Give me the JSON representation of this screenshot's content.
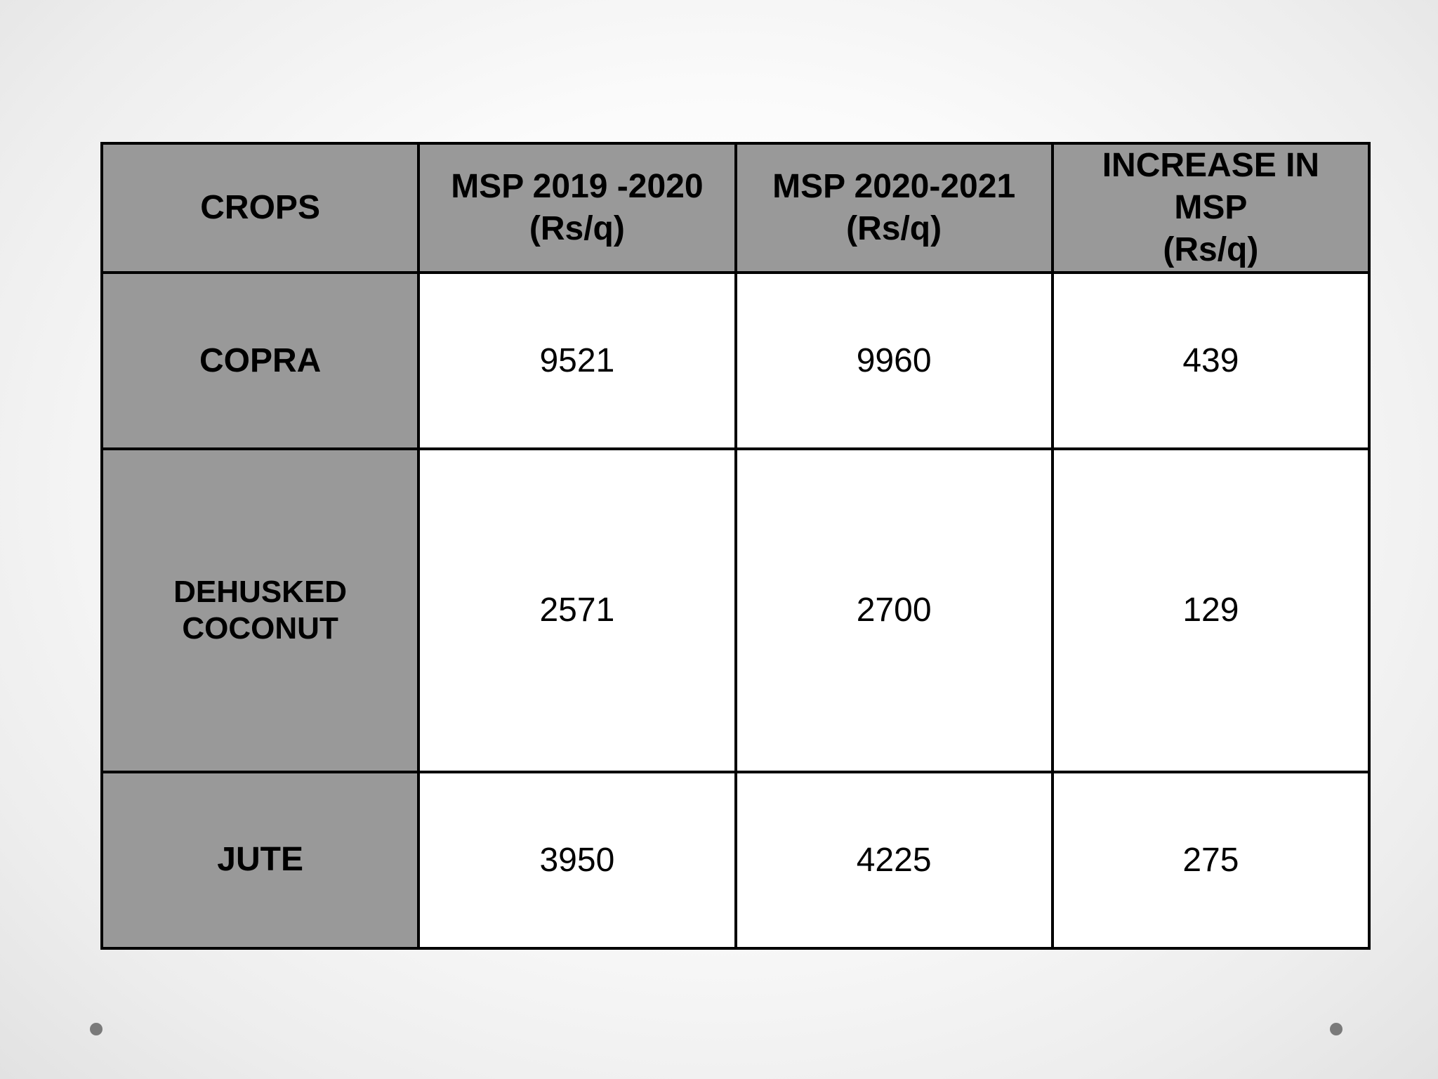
{
  "table": {
    "headers": [
      "CROPS",
      "MSP 2019 -2020\n(Rs/q)",
      "MSP 2020-2021\n(Rs/q)",
      "INCREASE IN\nMSP\n(Rs/q)"
    ],
    "rows": [
      {
        "crop": "COPRA",
        "msp_2019_2020": "9521",
        "msp_2020_2021": "9960",
        "increase": "439"
      },
      {
        "crop": "DEHUSKED\nCOCONUT",
        "msp_2019_2020": "2571",
        "msp_2020_2021": "2700",
        "increase": "129"
      },
      {
        "crop": "JUTE",
        "msp_2019_2020": "3950",
        "msp_2020_2021": "4225",
        "increase": "275"
      }
    ]
  },
  "colors": {
    "header_fill": "#999999",
    "cell_fill": "#ffffff",
    "border": "#000000",
    "bullet_dot": "#7a7a7a"
  }
}
